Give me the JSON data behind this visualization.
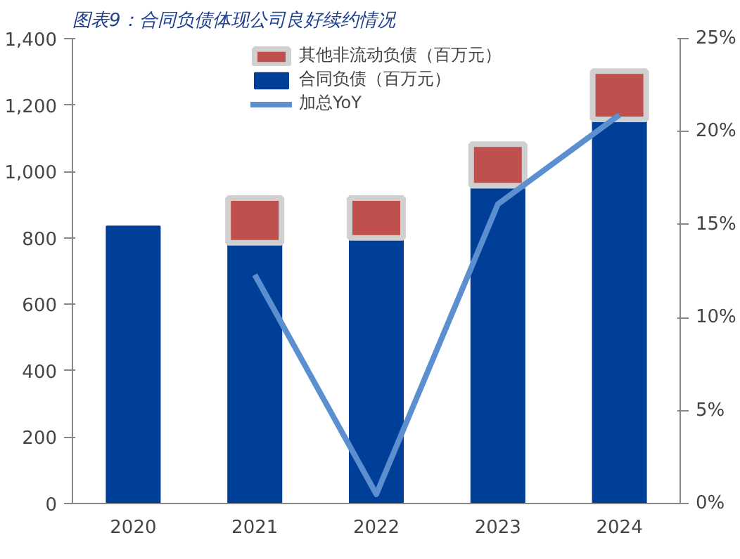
{
  "chart_data": {
    "type": "bar",
    "title": "图表9：合同负债体现公司良好续约情况",
    "categories": [
      "2020",
      "2021",
      "2022",
      "2023",
      "2024"
    ],
    "stacked": true,
    "legend": "top",
    "ylim": [
      0,
      1400
    ],
    "yticks": [
      0,
      200,
      400,
      600,
      800,
      {
        "value": 1000,
        "label": "1,000"
      },
      {
        "value": 1200,
        "label": "1,200"
      },
      {
        "value": 1400,
        "label": "1,400"
      }
    ],
    "y2lim": [
      0,
      25
    ],
    "y2ticks": [
      {
        "value": 0,
        "label": "0%"
      },
      {
        "value": 5,
        "label": "5%"
      },
      {
        "value": 10,
        "label": "10%"
      },
      {
        "value": 15,
        "label": "15%"
      },
      {
        "value": 20,
        "label": "20%"
      },
      {
        "value": 25,
        "label": "25%"
      }
    ],
    "series": [
      {
        "name": "合同负债（百万元）",
        "color": "#003f98",
        "values": [
          835,
          785,
          800,
          957,
          1157
        ]
      },
      {
        "name": "其他非流动负债（百万元）",
        "color": "#c0504d",
        "values": [
          null,
          135,
          120,
          125,
          145
        ]
      },
      {
        "name": "加总YoY",
        "type": "line",
        "axis": "y2",
        "color": "#5b8fd0",
        "values": [
          null,
          12.3,
          0.5,
          16.1,
          20.9
        ]
      }
    ]
  }
}
